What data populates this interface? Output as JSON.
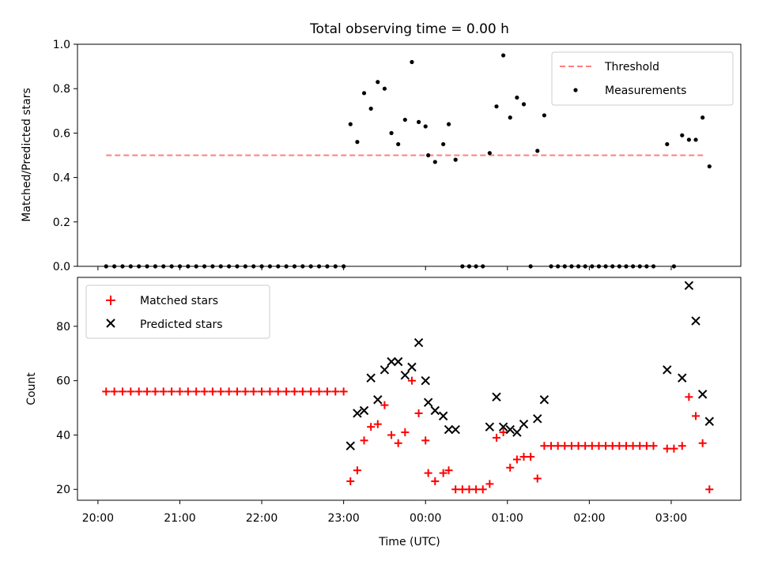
{
  "chart_data": [
    {
      "type": "scatter",
      "title": "Total observing time = 0.00 h",
      "xlabel": "",
      "ylabel": "Matched/Predicted stars",
      "ylim": [
        0,
        1.0
      ],
      "yticks": [
        "0.0",
        "0.2",
        "0.4",
        "0.6",
        "0.8",
        "1.0"
      ],
      "xlim_hours": [
        19.75,
        27.85
      ],
      "legend": {
        "placement": "top-right",
        "entries": [
          "Threshold",
          "Measurements"
        ]
      },
      "threshold": {
        "name": "Threshold",
        "value": 0.5,
        "x_start": "20:06",
        "x_end": "03:25",
        "color": "#ff7f7f"
      },
      "series": [
        {
          "name": "Measurements",
          "color": "#000000",
          "points": [
            [
              "20:06",
              0
            ],
            [
              "20:12",
              0
            ],
            [
              "20:18",
              0
            ],
            [
              "20:24",
              0
            ],
            [
              "20:30",
              0
            ],
            [
              "20:36",
              0
            ],
            [
              "20:42",
              0
            ],
            [
              "20:48",
              0
            ],
            [
              "20:54",
              0
            ],
            [
              "21:00",
              0
            ],
            [
              "21:06",
              0
            ],
            [
              "21:12",
              0
            ],
            [
              "21:18",
              0
            ],
            [
              "21:24",
              0
            ],
            [
              "21:30",
              0
            ],
            [
              "21:36",
              0
            ],
            [
              "21:42",
              0
            ],
            [
              "21:48",
              0
            ],
            [
              "21:54",
              0
            ],
            [
              "22:00",
              0
            ],
            [
              "22:06",
              0
            ],
            [
              "22:12",
              0
            ],
            [
              "22:18",
              0
            ],
            [
              "22:24",
              0
            ],
            [
              "22:30",
              0
            ],
            [
              "22:36",
              0
            ],
            [
              "22:42",
              0
            ],
            [
              "22:48",
              0
            ],
            [
              "22:54",
              0
            ],
            [
              "23:00",
              0
            ],
            [
              "23:05",
              0.64
            ],
            [
              "23:10",
              0.56
            ],
            [
              "23:15",
              0.78
            ],
            [
              "23:20",
              0.71
            ],
            [
              "23:25",
              0.83
            ],
            [
              "23:30",
              0.8
            ],
            [
              "23:35",
              0.6
            ],
            [
              "23:40",
              0.55
            ],
            [
              "23:45",
              0.66
            ],
            [
              "23:50",
              0.92
            ],
            [
              "23:55",
              0.65
            ],
            [
              "00:00",
              0.63
            ],
            [
              "00:02",
              0.5
            ],
            [
              "00:07",
              0.47
            ],
            [
              "00:13",
              0.55
            ],
            [
              "00:17",
              0.64
            ],
            [
              "00:22",
              0.48
            ],
            [
              "00:27",
              0
            ],
            [
              "00:32",
              0
            ],
            [
              "00:37",
              0
            ],
            [
              "00:42",
              0
            ],
            [
              "00:47",
              0.51
            ],
            [
              "00:52",
              0.72
            ],
            [
              "00:57",
              0.95
            ],
            [
              "01:02",
              0.67
            ],
            [
              "01:07",
              0.76
            ],
            [
              "01:12",
              0.73
            ],
            [
              "01:17",
              0
            ],
            [
              "01:22",
              0.52
            ],
            [
              "01:27",
              0.68
            ],
            [
              "01:32",
              0
            ],
            [
              "01:37",
              0
            ],
            [
              "01:42",
              0
            ],
            [
              "01:47",
              0
            ],
            [
              "01:52",
              0
            ],
            [
              "01:57",
              0
            ],
            [
              "02:02",
              0
            ],
            [
              "02:07",
              0
            ],
            [
              "02:12",
              0
            ],
            [
              "02:17",
              0
            ],
            [
              "02:22",
              0
            ],
            [
              "02:27",
              0
            ],
            [
              "02:32",
              0
            ],
            [
              "02:37",
              0
            ],
            [
              "02:42",
              0
            ],
            [
              "02:47",
              0
            ],
            [
              "02:57",
              0.55
            ],
            [
              "03:02",
              0
            ],
            [
              "03:08",
              0.59
            ],
            [
              "03:13",
              0.57
            ],
            [
              "03:18",
              0.57
            ],
            [
              "03:23",
              0.67
            ],
            [
              "03:28",
              0.45
            ]
          ]
        }
      ]
    },
    {
      "type": "scatter",
      "title": "",
      "xlabel": "Time (UTC)",
      "ylabel": "Count",
      "ylim": [
        16,
        98
      ],
      "yticks": [
        "20",
        "40",
        "60",
        "80"
      ],
      "xlim_hours": [
        19.75,
        27.85
      ],
      "xticks": [
        "20:00",
        "21:00",
        "22:00",
        "23:00",
        "00:00",
        "01:00",
        "02:00",
        "03:00"
      ],
      "legend": {
        "placement": "top-left",
        "entries": [
          "Matched stars",
          "Predicted stars"
        ]
      },
      "series": [
        {
          "name": "Matched stars",
          "marker": "+",
          "color": "#ff0000",
          "points": [
            [
              "20:06",
              56
            ],
            [
              "20:12",
              56
            ],
            [
              "20:18",
              56
            ],
            [
              "20:24",
              56
            ],
            [
              "20:30",
              56
            ],
            [
              "20:36",
              56
            ],
            [
              "20:42",
              56
            ],
            [
              "20:48",
              56
            ],
            [
              "20:54",
              56
            ],
            [
              "21:00",
              56
            ],
            [
              "21:06",
              56
            ],
            [
              "21:12",
              56
            ],
            [
              "21:18",
              56
            ],
            [
              "21:24",
              56
            ],
            [
              "21:30",
              56
            ],
            [
              "21:36",
              56
            ],
            [
              "21:42",
              56
            ],
            [
              "21:48",
              56
            ],
            [
              "21:54",
              56
            ],
            [
              "22:00",
              56
            ],
            [
              "22:06",
              56
            ],
            [
              "22:12",
              56
            ],
            [
              "22:18",
              56
            ],
            [
              "22:24",
              56
            ],
            [
              "22:30",
              56
            ],
            [
              "22:36",
              56
            ],
            [
              "22:42",
              56
            ],
            [
              "22:48",
              56
            ],
            [
              "22:54",
              56
            ],
            [
              "23:00",
              56
            ],
            [
              "23:05",
              23
            ],
            [
              "23:10",
              27
            ],
            [
              "23:15",
              38
            ],
            [
              "23:20",
              43
            ],
            [
              "23:25",
              44
            ],
            [
              "23:30",
              51
            ],
            [
              "23:35",
              40
            ],
            [
              "23:40",
              37
            ],
            [
              "23:45",
              41
            ],
            [
              "23:50",
              60
            ],
            [
              "23:55",
              48
            ],
            [
              "00:00",
              38
            ],
            [
              "00:02",
              26
            ],
            [
              "00:07",
              23
            ],
            [
              "00:13",
              26
            ],
            [
              "00:17",
              27
            ],
            [
              "00:22",
              20
            ],
            [
              "00:27",
              20
            ],
            [
              "00:32",
              20
            ],
            [
              "00:37",
              20
            ],
            [
              "00:42",
              20
            ],
            [
              "00:47",
              22
            ],
            [
              "00:52",
              39
            ],
            [
              "00:57",
              41
            ],
            [
              "01:02",
              28
            ],
            [
              "01:07",
              31
            ],
            [
              "01:12",
              32
            ],
            [
              "01:17",
              32
            ],
            [
              "01:22",
              24
            ],
            [
              "01:27",
              36
            ],
            [
              "01:32",
              36
            ],
            [
              "01:37",
              36
            ],
            [
              "01:42",
              36
            ],
            [
              "01:47",
              36
            ],
            [
              "01:52",
              36
            ],
            [
              "01:57",
              36
            ],
            [
              "02:02",
              36
            ],
            [
              "02:07",
              36
            ],
            [
              "02:12",
              36
            ],
            [
              "02:17",
              36
            ],
            [
              "02:22",
              36
            ],
            [
              "02:27",
              36
            ],
            [
              "02:32",
              36
            ],
            [
              "02:37",
              36
            ],
            [
              "02:42",
              36
            ],
            [
              "02:47",
              36
            ],
            [
              "02:57",
              35
            ],
            [
              "03:02",
              35
            ],
            [
              "03:08",
              36
            ],
            [
              "03:13",
              54
            ],
            [
              "03:18",
              47
            ],
            [
              "03:23",
              37
            ],
            [
              "03:28",
              20
            ]
          ]
        },
        {
          "name": "Predicted stars",
          "marker": "x",
          "color": "#000000",
          "points": [
            [
              "23:05",
              36
            ],
            [
              "23:10",
              48
            ],
            [
              "23:15",
              49
            ],
            [
              "23:20",
              61
            ],
            [
              "23:25",
              53
            ],
            [
              "23:30",
              64
            ],
            [
              "23:35",
              67
            ],
            [
              "23:40",
              67
            ],
            [
              "23:45",
              62
            ],
            [
              "23:50",
              65
            ],
            [
              "23:55",
              74
            ],
            [
              "00:00",
              60
            ],
            [
              "00:02",
              52
            ],
            [
              "00:07",
              49
            ],
            [
              "00:13",
              47
            ],
            [
              "00:17",
              42
            ],
            [
              "00:22",
              42
            ],
            [
              "00:47",
              43
            ],
            [
              "00:52",
              54
            ],
            [
              "00:57",
              43
            ],
            [
              "01:02",
              42
            ],
            [
              "01:07",
              41
            ],
            [
              "01:12",
              44
            ],
            [
              "01:22",
              46
            ],
            [
              "01:27",
              53
            ],
            [
              "02:57",
              64
            ],
            [
              "03:08",
              61
            ],
            [
              "03:13",
              95
            ],
            [
              "03:18",
              82
            ],
            [
              "03:23",
              55
            ],
            [
              "03:28",
              45
            ]
          ]
        }
      ]
    }
  ]
}
